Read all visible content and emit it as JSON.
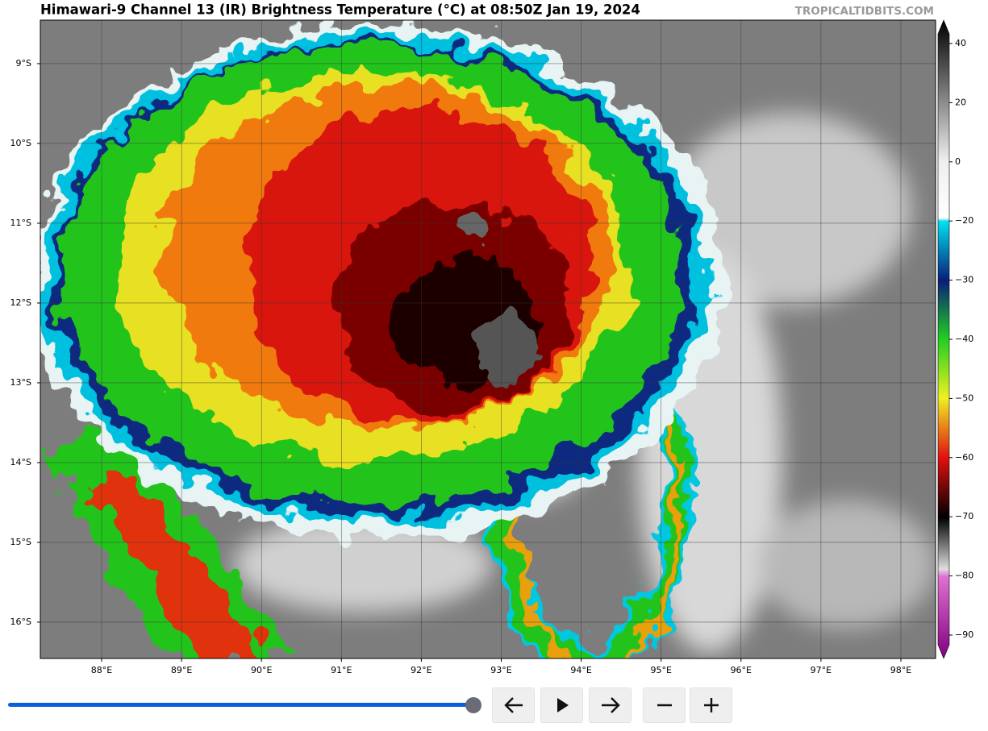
{
  "header": {
    "title": "Himawari-9 Channel 13 (IR) Brightness Temperature (°C) at 08:50Z Jan 19, 2024",
    "source": "TROPICALTIDBITS.COM"
  },
  "map": {
    "lon_lim": [
      87.233,
      98.434
    ],
    "lat_lim": [
      -16.455,
      -8.455
    ],
    "lon_ticks": [
      {
        "value": 88,
        "label": "88°E"
      },
      {
        "value": 89,
        "label": "89°E"
      },
      {
        "value": 90,
        "label": "90°E"
      },
      {
        "value": 91,
        "label": "91°E"
      },
      {
        "value": 92,
        "label": "92°E"
      },
      {
        "value": 93,
        "label": "93°E"
      },
      {
        "value": 94,
        "label": "94°E"
      },
      {
        "value": 95,
        "label": "95°E"
      },
      {
        "value": 96,
        "label": "96°E"
      },
      {
        "value": 97,
        "label": "97°E"
      },
      {
        "value": 98,
        "label": "98°E"
      }
    ],
    "lat_ticks": [
      {
        "value": -9,
        "label": "9°S"
      },
      {
        "value": -10,
        "label": "10°S"
      },
      {
        "value": -11,
        "label": "11°S"
      },
      {
        "value": -12,
        "label": "12°S"
      },
      {
        "value": -13,
        "label": "13°S"
      },
      {
        "value": -14,
        "label": "14°S"
      },
      {
        "value": -15,
        "label": "15°S"
      },
      {
        "value": -16,
        "label": "16°S"
      }
    ],
    "grid": true
  },
  "colorbar": {
    "ticks": [
      40,
      20,
      0,
      {
        "value": -20,
        "label": "−20"
      },
      {
        "value": -30,
        "label": "−30"
      },
      {
        "value": -40,
        "label": "−40"
      },
      {
        "value": -50,
        "label": "−50"
      },
      {
        "value": -60,
        "label": "−60"
      },
      {
        "value": -70,
        "label": "−70"
      },
      {
        "value": -80,
        "label": "−80"
      },
      {
        "value": -90,
        "label": "−90"
      }
    ]
  }
}
